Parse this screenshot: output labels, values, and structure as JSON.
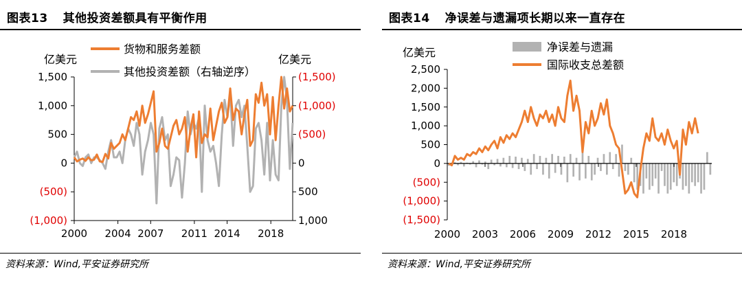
{
  "charts": [
    {
      "id": "left",
      "title_num": "图表13",
      "title_text": "其他投资差额具有平衡作用",
      "source": "资料来源：Wind,平安证券研究所",
      "y_unit_left": "亿美元",
      "y_unit_right": "亿美元",
      "legend": [
        "货物和服务差额",
        "其他投资差额（右轴逆序）"
      ],
      "x_tick_labels": [
        "2000",
        "2004",
        "2007",
        "2011",
        "2014",
        "2018"
      ],
      "y_tick_labels_left": [
        "1,500",
        "1,000",
        "500",
        "0",
        "(500)",
        "(1,000)"
      ],
      "y_tick_labels_right": [
        "(1,500)",
        "(1,000)",
        "(500)",
        "0",
        "500",
        "1,000"
      ]
    },
    {
      "id": "right",
      "title_num": "图表14",
      "title_text": "净误差与遗漏项长期以来一直存在",
      "source": "资料来源：Wind,平安证券研究所",
      "y_unit_left": "亿美元",
      "legend": [
        "净误差与遗漏",
        "国际收支总差额"
      ],
      "x_tick_labels": [
        "2000",
        "2003",
        "2006",
        "2009",
        "2012",
        "2015",
        "2018"
      ],
      "y_tick_labels_left": [
        "2,500",
        "2,000",
        "1,500",
        "1,000",
        "500",
        "0",
        "(500)",
        "(1,000)",
        "(1,500)"
      ]
    }
  ],
  "colors": {
    "orange": "#ED7D31",
    "gray": "#B2B2B2",
    "negative_label": "#E00000",
    "axis": "#000000"
  },
  "chart_data": [
    {
      "type": "line",
      "x_start": 2000,
      "x_end": 2020,
      "ylim_left": [
        -1000,
        1500
      ],
      "ylim_right": [
        -1500,
        1000
      ],
      "right_axis_reversed": true,
      "legend_position": "top",
      "series": [
        {
          "name": "货物和服务差额",
          "axis": "left",
          "values": [
            100,
            30,
            60,
            80,
            40,
            100,
            50,
            60,
            150,
            30,
            20,
            160,
            80,
            350,
            250,
            300,
            350,
            500,
            400,
            600,
            800,
            750,
            900,
            650,
            1000,
            700,
            850,
            1050,
            1250,
            200,
            350,
            600,
            300,
            250,
            450,
            650,
            750,
            500,
            600,
            800,
            200,
            600,
            850,
            100,
            900,
            350,
            500,
            450,
            950,
            400,
            650,
            900,
            1050,
            700,
            800,
            1300,
            750,
            950,
            900,
            500,
            850,
            1100,
            300,
            400,
            1200,
            1050,
            1400,
            1000,
            1200,
            500,
            1150,
            400,
            1000,
            1500,
            950,
            1300,
            900,
            1000
          ]
        },
        {
          "name": "其他投资差额（右轴逆序）",
          "axis": "right",
          "values": [
            -100,
            -200,
            0,
            50,
            -100,
            -150,
            0,
            -100,
            -100,
            -50,
            0,
            100,
            -200,
            -400,
            -100,
            -100,
            -200,
            0,
            -400,
            -600,
            -500,
            -300,
            -700,
            -500,
            200,
            -200,
            -400,
            -700,
            -500,
            700,
            -600,
            -800,
            -400,
            -500,
            400,
            200,
            -100,
            -50,
            600,
            0,
            -900,
            -500,
            -700,
            -600,
            -800,
            500,
            -1000,
            -400,
            -200,
            -300,
            0,
            400,
            -500,
            -1100,
            -800,
            -1200,
            -300,
            -1000,
            -1100,
            -800,
            -1000,
            -300,
            500,
            400,
            -600,
            -700,
            -400,
            200,
            -700,
            300,
            -400,
            200,
            300,
            -1000,
            -1500,
            -1100,
            100,
            -700
          ]
        }
      ]
    },
    {
      "type": "bar+line",
      "x_start": 2000,
      "x_end": 2021,
      "ylim": [
        -1500,
        2500
      ],
      "legend_position": "top",
      "series": [
        {
          "name": "净误差与遗漏",
          "kind": "bar",
          "values": [
            -60,
            -20,
            30,
            -50,
            40,
            -80,
            20,
            -30,
            60,
            -100,
            80,
            -30,
            50,
            -150,
            100,
            -50,
            120,
            -80,
            150,
            -100,
            200,
            -120,
            180,
            -150,
            150,
            -200,
            120,
            -300,
            250,
            -150,
            200,
            -300,
            150,
            -400,
            250,
            -250,
            200,
            -300,
            180,
            -500,
            250,
            -350,
            150,
            -450,
            300,
            -400,
            200,
            -450,
            -300,
            150,
            -200,
            250,
            -300,
            300,
            -150,
            250,
            -350,
            500,
            -200,
            -300,
            150,
            -500,
            -700,
            -600,
            -800,
            -400,
            -700,
            -600,
            -400,
            -800,
            -200,
            -600,
            -800,
            -700,
            -500,
            -600,
            -400,
            -700,
            -600,
            -800,
            -500,
            -600,
            -500,
            -800,
            -700,
            300,
            -300
          ]
        },
        {
          "name": "国际收支总差额",
          "kind": "line",
          "values": [
            0,
            -50,
            200,
            100,
            150,
            100,
            250,
            200,
            300,
            250,
            400,
            300,
            450,
            350,
            500,
            600,
            400,
            700,
            550,
            750,
            650,
            800,
            700,
            900,
            1100,
            1400,
            1100,
            1500,
            1200,
            1000,
            1300,
            1200,
            1400,
            1100,
            1300,
            1000,
            1500,
            1200,
            1100,
            1800,
            2200,
            1400,
            1800,
            1400,
            300,
            1100,
            800,
            1400,
            1000,
            1200,
            1600,
            1300,
            1700,
            1000,
            800,
            500,
            400,
            -200,
            -800,
            -700,
            -500,
            -800,
            -900,
            -200,
            400,
            800,
            600,
            1200,
            700,
            600,
            800,
            500,
            900,
            600,
            400,
            600,
            -300,
            900,
            500,
            1100,
            800,
            1200,
            800
          ]
        }
      ]
    }
  ]
}
